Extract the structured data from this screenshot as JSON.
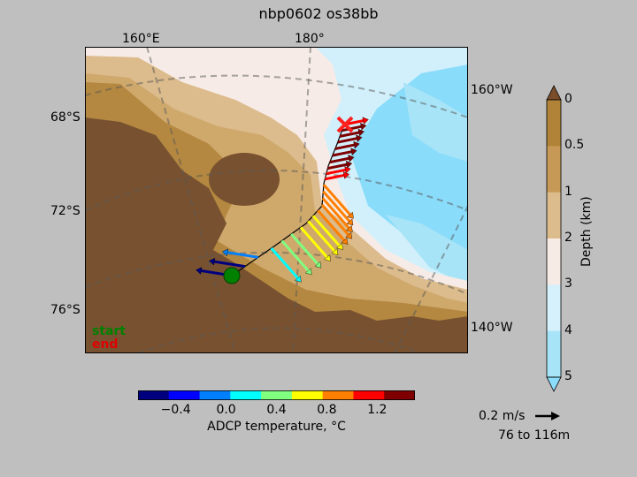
{
  "title": "nbp0602 os38bb",
  "chart_data": {
    "type": "map-vector",
    "title": "nbp0602 os38bb",
    "lon_top_labels": [
      "160°E",
      "180°"
    ],
    "lon_right_labels": [
      "160°W",
      "140°W"
    ],
    "lat_labels": [
      "68°S",
      "72°S",
      "76°S"
    ],
    "legend": {
      "start": "start",
      "end": "end"
    },
    "depth_colorbar": {
      "label": "Depth (km)",
      "ticks": [
        "0",
        "0.5",
        "1",
        "2",
        "3",
        "4",
        "5"
      ],
      "colors": [
        "#7a4e2a",
        "#b08338",
        "#c69a56",
        "#dcbb8c",
        "#f7ebe6",
        "#d6f1fb",
        "#a8e4f7",
        "#8cdcfb"
      ]
    },
    "temp_colorbar": {
      "label": "ADCP temperature, °C",
      "ticks": [
        "−0.4",
        "0.0",
        "0.4",
        "0.8",
        "1.2"
      ],
      "tick_values": [
        -0.4,
        0.0,
        0.4,
        0.8,
        1.2
      ],
      "range": [
        -0.7,
        1.5
      ],
      "colors": [
        "#00007f",
        "#0000ff",
        "#0080ff",
        "#00ffff",
        "#80ff80",
        "#ffff00",
        "#ff8000",
        "#ff0000",
        "#7f0000"
      ]
    },
    "scale_arrow": {
      "label": "0.2 m/s",
      "depth_range": "76 to 116m"
    },
    "track": {
      "start": "green circle",
      "end": "red x"
    },
    "vectors_temperature_c": [
      -0.6,
      -0.5,
      -0.1,
      0.2,
      0.4,
      0.5,
      0.6,
      0.7,
      0.75,
      0.8,
      0.85,
      0.9,
      0.95,
      1.0,
      1.1,
      1.2,
      1.3,
      1.4,
      1.45,
      1.5,
      1.45,
      1.4,
      1.3,
      1.2
    ]
  }
}
